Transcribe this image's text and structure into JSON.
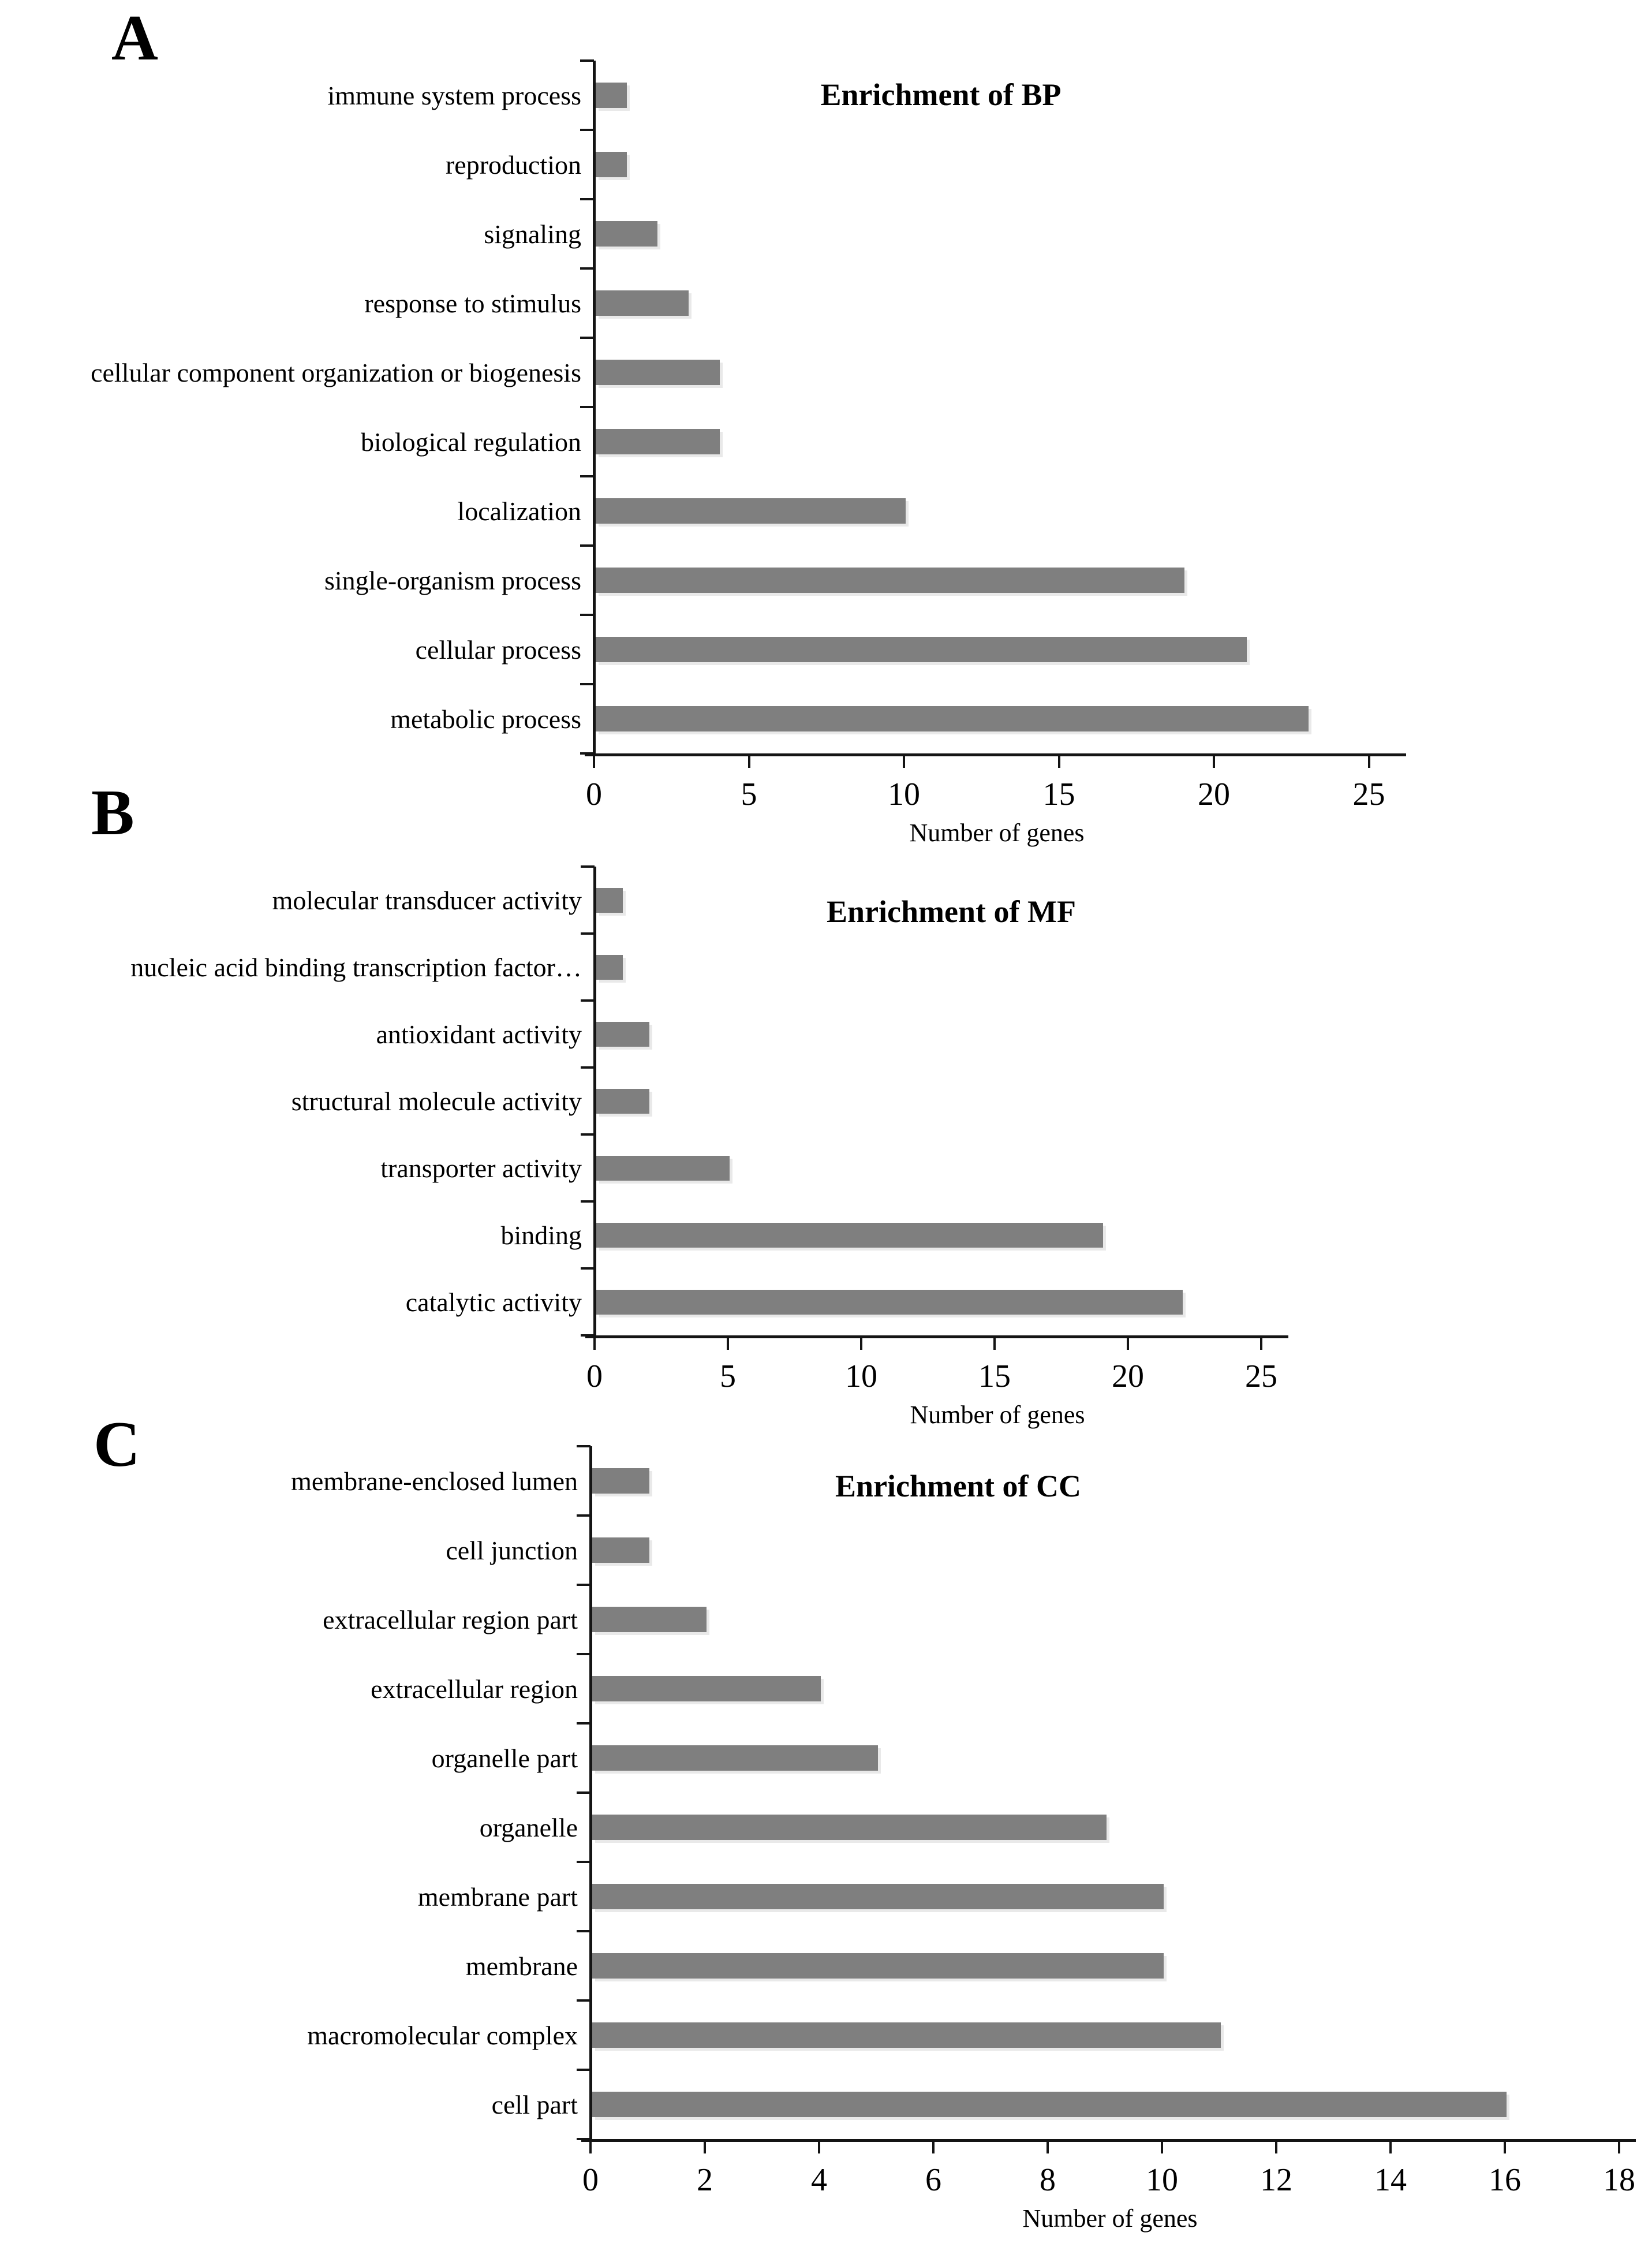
{
  "figure": {
    "description_text_visible": false
  },
  "chart_data": [
    {
      "type": "bar",
      "orientation": "horizontal",
      "panel": "A",
      "title": "Enrichment of BP",
      "xlabel": "Number of genes",
      "ylabel": "",
      "categories": [
        "immune system process",
        "reproduction",
        "signaling",
        "response to stimulus",
        "cellular component organization or biogenesis",
        "biological regulation",
        "localization",
        "single-organism process",
        "cellular process",
        "metabolic process"
      ],
      "values": [
        1,
        1,
        2,
        3,
        4,
        4,
        10,
        19,
        21,
        23
      ],
      "xticks": [
        0,
        5,
        10,
        15,
        20,
        25
      ],
      "xlim": [
        0,
        25
      ],
      "grid": false,
      "legend": "none",
      "bar_color": "#7f7f7f",
      "axis_color": "#141414"
    },
    {
      "type": "bar",
      "orientation": "horizontal",
      "panel": "B",
      "title": "Enrichment of MF",
      "xlabel": "Number of genes",
      "ylabel": "",
      "categories": [
        "molecular transducer activity",
        "nucleic acid binding transcription factor…",
        "antioxidant activity",
        "structural molecule activity",
        "transporter activity",
        "binding",
        "catalytic activity"
      ],
      "values": [
        1,
        1,
        2,
        2,
        5,
        19,
        22
      ],
      "xticks": [
        0,
        5,
        10,
        15,
        20,
        25
      ],
      "xlim": [
        0,
        25
      ],
      "grid": false,
      "legend": "none",
      "bar_color": "#7f7f7f",
      "axis_color": "#141414"
    },
    {
      "type": "bar",
      "orientation": "horizontal",
      "panel": "C",
      "title": "Enrichment of CC",
      "xlabel": "Number of genes",
      "ylabel": "",
      "categories": [
        "membrane-enclosed lumen",
        "cell junction",
        "extracellular region part",
        "extracellular region",
        "organelle part",
        "organelle",
        "membrane part",
        "membrane",
        "macromolecular complex",
        "cell part"
      ],
      "values": [
        1,
        1,
        2,
        4,
        5,
        9,
        10,
        10,
        11,
        16
      ],
      "xticks": [
        0,
        2,
        4,
        6,
        8,
        10,
        12,
        14,
        16,
        18
      ],
      "xlim": [
        0,
        18
      ],
      "grid": false,
      "legend": "none",
      "bar_color": "#7f7f7f",
      "axis_color": "#141414"
    }
  ]
}
